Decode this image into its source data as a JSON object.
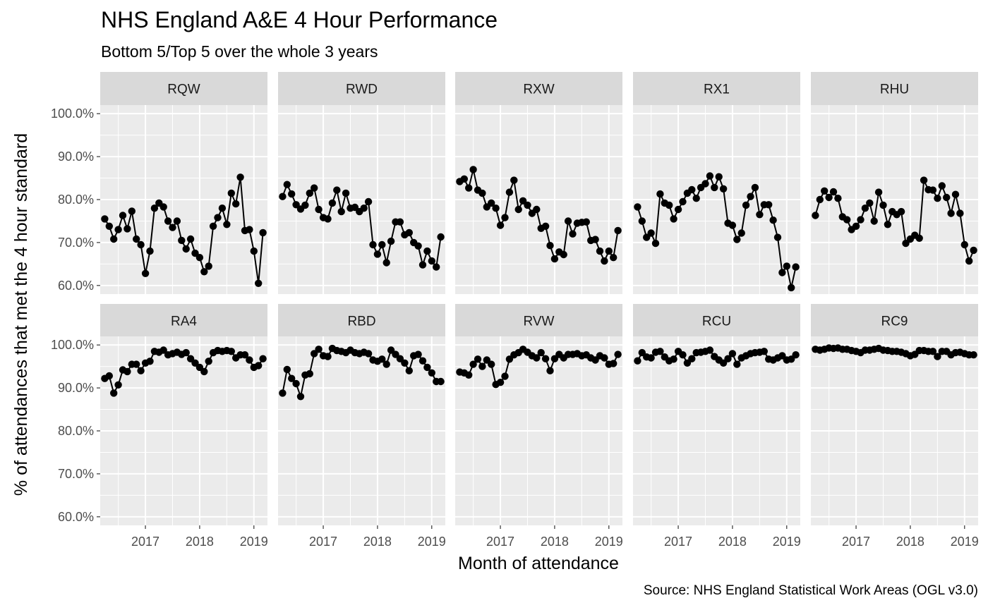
{
  "chart_data": {
    "type": "scatter",
    "title": "NHS England A&E 4 Hour Performance",
    "subtitle": "Bottom 5/Top 5 over the whole 3 years",
    "xlabel": "Month of attendance",
    "ylabel": "% of attendances that met the 4 hour standard",
    "caption": "Source: NHS England Statistical Work Areas (OGL v3.0)",
    "x_ticks": [
      "2017",
      "2018",
      "2019"
    ],
    "y_ticks": [
      "60.0%",
      "70.0%",
      "80.0%",
      "90.0%",
      "100.0%"
    ],
    "ylim": [
      58,
      102
    ],
    "xlim": [
      "2016-03",
      "2019-04"
    ],
    "grid": true,
    "markers": "points joined by lines",
    "x": [
      "2016-04",
      "2016-05",
      "2016-06",
      "2016-07",
      "2016-08",
      "2016-09",
      "2016-10",
      "2016-11",
      "2016-12",
      "2017-01",
      "2017-02",
      "2017-03",
      "2017-04",
      "2017-05",
      "2017-06",
      "2017-07",
      "2017-08",
      "2017-09",
      "2017-10",
      "2017-11",
      "2017-12",
      "2018-01",
      "2018-02",
      "2018-03",
      "2018-04",
      "2018-05",
      "2018-06",
      "2018-07",
      "2018-08",
      "2018-09",
      "2018-10",
      "2018-11",
      "2018-12",
      "2019-01",
      "2019-02",
      "2019-03"
    ],
    "series": [
      {
        "name": "RQW",
        "values": [
          75.5,
          73.8,
          70.8,
          73.0,
          76.3,
          73.2,
          77.3,
          70.8,
          69.5,
          62.8,
          68.0,
          78.0,
          79.2,
          78.3,
          75.0,
          73.5,
          75.0,
          70.5,
          68.5,
          70.8,
          67.5,
          66.5,
          63.2,
          64.5,
          73.8,
          75.8,
          78.0,
          74.2,
          81.5,
          79.0,
          85.2,
          72.8,
          73.0,
          68.0,
          60.5,
          72.3
        ]
      },
      {
        "name": "RWD",
        "values": [
          80.7,
          83.5,
          81.3,
          78.8,
          77.8,
          78.7,
          81.5,
          82.7,
          77.7,
          75.8,
          75.5,
          79.2,
          82.2,
          77.2,
          81.5,
          78.0,
          78.2,
          77.2,
          78.0,
          79.5,
          69.5,
          67.3,
          69.5,
          65.3,
          70.3,
          74.8,
          74.8,
          71.8,
          72.3,
          70.0,
          69.2,
          64.8,
          68.0,
          65.7,
          64.3,
          71.3
        ]
      },
      {
        "name": "RXW",
        "values": [
          84.2,
          84.8,
          82.7,
          87.0,
          82.2,
          81.5,
          78.3,
          79.2,
          78.0,
          74.0,
          75.8,
          81.7,
          84.5,
          77.7,
          79.7,
          78.7,
          76.8,
          77.7,
          73.3,
          73.8,
          69.3,
          66.2,
          67.8,
          67.2,
          75.0,
          72.0,
          74.5,
          74.7,
          74.8,
          70.5,
          70.7,
          68.0,
          65.7,
          68.0,
          66.5,
          72.8
        ]
      },
      {
        "name": "RX1",
        "values": [
          78.3,
          75.0,
          71.2,
          72.2,
          69.8,
          81.3,
          79.2,
          78.7,
          75.5,
          77.7,
          79.5,
          81.5,
          82.3,
          80.3,
          82.8,
          83.7,
          85.5,
          82.8,
          85.3,
          82.5,
          74.5,
          74.0,
          70.7,
          72.2,
          78.7,
          80.7,
          82.8,
          76.5,
          78.8,
          78.8,
          75.2,
          71.2,
          63.0,
          64.5,
          59.5,
          64.3
        ]
      },
      {
        "name": "RHU",
        "values": [
          76.3,
          80.0,
          82.0,
          80.5,
          81.8,
          80.3,
          76.0,
          75.3,
          73.0,
          73.8,
          75.3,
          78.0,
          79.2,
          75.0,
          81.7,
          78.7,
          74.2,
          77.2,
          76.5,
          77.2,
          69.8,
          70.8,
          71.7,
          71.0,
          84.5,
          82.3,
          82.2,
          80.3,
          83.2,
          80.5,
          76.8,
          81.2,
          76.8,
          69.5,
          65.7,
          68.2
        ]
      },
      {
        "name": "RA4",
        "values": [
          92.2,
          92.8,
          88.8,
          90.7,
          94.2,
          93.8,
          95.5,
          95.5,
          94.0,
          95.8,
          96.2,
          98.5,
          98.3,
          98.8,
          97.7,
          98.0,
          98.3,
          97.8,
          98.2,
          96.8,
          95.8,
          94.8,
          93.8,
          96.2,
          98.2,
          98.7,
          98.5,
          98.7,
          98.5,
          97.0,
          97.7,
          97.7,
          96.5,
          94.8,
          95.2,
          96.8
        ]
      },
      {
        "name": "RBD",
        "values": [
          88.8,
          94.3,
          92.2,
          91.0,
          88.0,
          93.0,
          93.3,
          98.0,
          99.0,
          97.5,
          97.3,
          99.2,
          98.7,
          98.5,
          98.2,
          98.8,
          98.2,
          98.0,
          98.3,
          98.0,
          96.5,
          96.2,
          96.7,
          95.5,
          98.8,
          97.8,
          96.8,
          95.8,
          94.0,
          97.5,
          97.8,
          96.3,
          94.8,
          93.5,
          91.5,
          91.5
        ]
      },
      {
        "name": "RVW",
        "values": [
          93.7,
          93.5,
          93.0,
          95.5,
          96.7,
          95.0,
          96.5,
          95.5,
          90.8,
          91.3,
          92.7,
          96.7,
          97.7,
          98.2,
          99.0,
          98.3,
          97.5,
          97.0,
          98.2,
          96.8,
          94.0,
          96.8,
          97.8,
          97.0,
          97.8,
          97.8,
          98.0,
          97.5,
          97.7,
          97.0,
          96.5,
          97.5,
          97.0,
          95.5,
          95.7,
          97.8
        ]
      },
      {
        "name": "RCU",
        "values": [
          96.3,
          98.2,
          97.2,
          97.0,
          98.3,
          98.5,
          97.2,
          96.3,
          96.7,
          98.5,
          97.7,
          95.8,
          96.8,
          98.2,
          98.3,
          98.5,
          98.8,
          97.3,
          96.5,
          95.8,
          96.8,
          98.0,
          95.5,
          97.0,
          97.5,
          98.0,
          98.2,
          98.3,
          98.5,
          96.7,
          96.5,
          97.0,
          97.5,
          96.5,
          96.7,
          97.7
        ]
      },
      {
        "name": "RC9",
        "values": [
          99.0,
          98.8,
          99.0,
          99.3,
          99.2,
          99.3,
          99.0,
          99.0,
          98.7,
          98.5,
          98.2,
          98.8,
          98.8,
          99.0,
          99.2,
          98.8,
          98.7,
          98.5,
          98.5,
          98.3,
          98.0,
          97.5,
          97.8,
          98.7,
          98.7,
          98.5,
          98.5,
          97.3,
          98.5,
          98.5,
          97.7,
          98.2,
          98.3,
          98.0,
          97.7,
          97.7
        ]
      }
    ]
  }
}
